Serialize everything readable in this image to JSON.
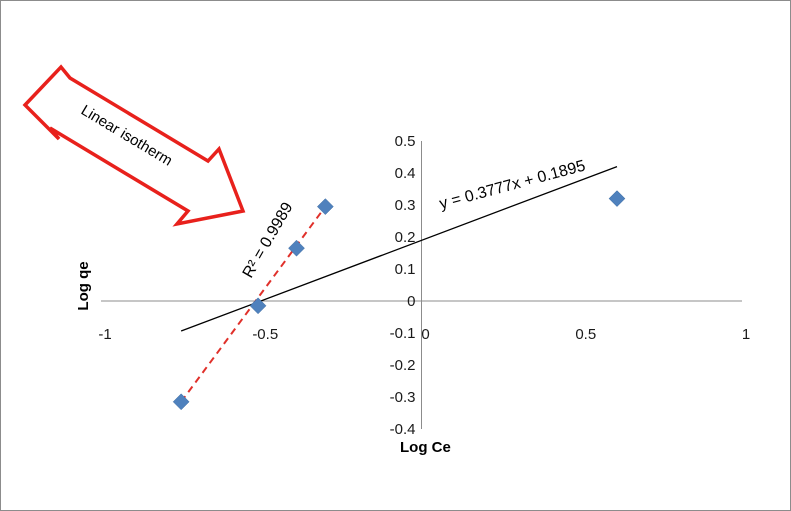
{
  "chart_data": {
    "type": "scatter",
    "title": "",
    "xlabel": "Log Ce",
    "ylabel": "Log qe",
    "xlim": [
      -1,
      1
    ],
    "ylim": [
      -0.4,
      0.5
    ],
    "x_ticks": [
      "-1",
      "-0.5",
      "0",
      "0.5",
      "1"
    ],
    "y_ticks": [
      "0.5",
      "0.4",
      "0.3",
      "0.2",
      "0.1",
      "0",
      "-0.1",
      "-0.2",
      "-0.3",
      "-0.4"
    ],
    "grid": false,
    "series": [
      {
        "marker": "diamond",
        "color": "#4f81bd",
        "points": [
          {
            "x": -0.75,
            "y": -0.315
          },
          {
            "x": -0.51,
            "y": -0.015
          },
          {
            "x": -0.39,
            "y": 0.165
          },
          {
            "x": -0.3,
            "y": 0.295
          },
          {
            "x": 0.61,
            "y": 0.32
          }
        ]
      }
    ],
    "trendlines": [
      {
        "equation": "y = 0.3777x + 0.1895",
        "slope": 0.3777,
        "intercept": 0.1895,
        "x_range": [
          -0.75,
          0.61
        ],
        "color": "#000000",
        "style": "solid"
      },
      {
        "label": "R² = 0.9989",
        "x_range": [
          -0.75,
          -0.3
        ],
        "y_range": [
          -0.315,
          0.295
        ],
        "color": "#e0302a",
        "style": "dashed"
      }
    ],
    "annotations": {
      "equation": "y = 0.3777x + 0.1895",
      "r_squared": "R² = 0.9989",
      "arrow_label": "Linear isotherm",
      "arrow_color": "#e8211c"
    }
  }
}
